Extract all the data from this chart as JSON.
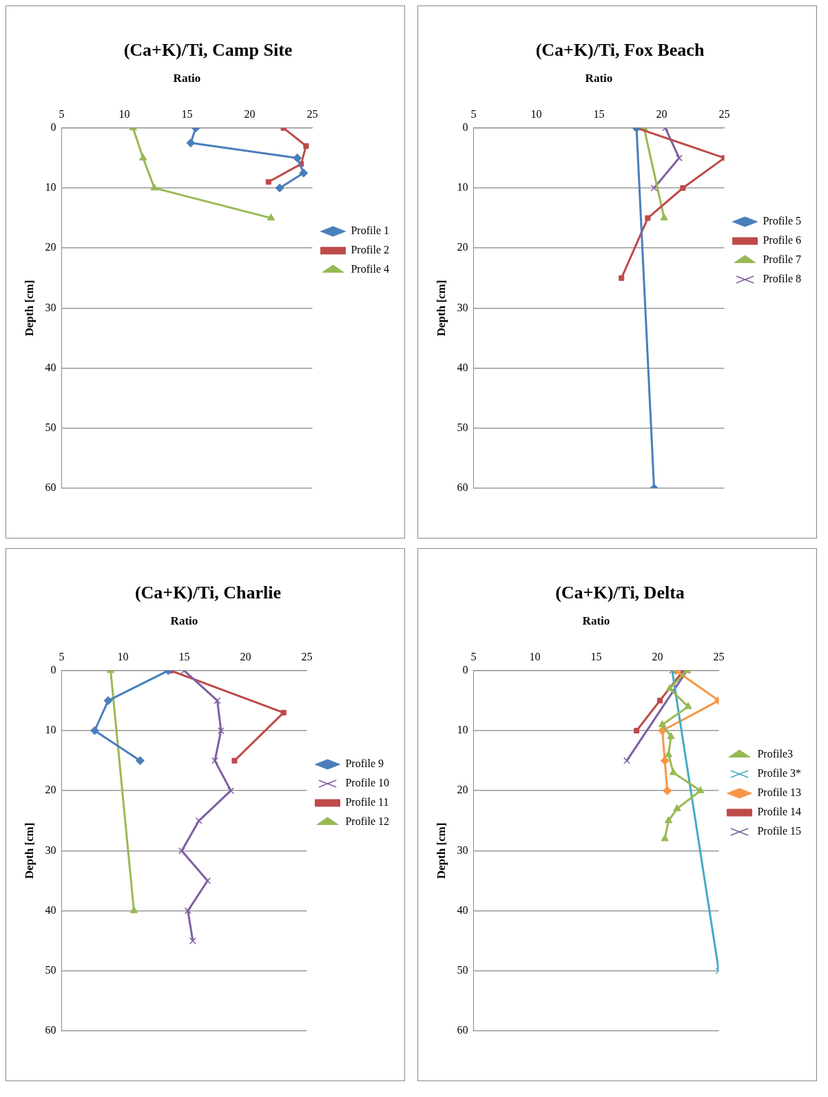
{
  "chart_data": [
    {
      "type": "line",
      "title": "(Ca+K)/Ti, Camp Site",
      "xlabel": "Ratio",
      "ylabel": "Depth [cm]",
      "xlim": [
        5,
        25
      ],
      "xticks": [
        5,
        10,
        15,
        20,
        25
      ],
      "ylim": [
        60,
        0
      ],
      "yticks": [
        0,
        10,
        20,
        30,
        40,
        50,
        60
      ],
      "grid": "y",
      "legend": "right",
      "series": [
        {
          "name": "Profile 1",
          "color": "#4a7ebb",
          "marker": "diamond",
          "x": [
            15.7,
            15.3,
            23.8,
            24.3,
            22.4
          ],
          "values": [
            0,
            2.5,
            5,
            7.5,
            10
          ]
        },
        {
          "name": "Profile 2",
          "color": "#be4b48",
          "marker": "square",
          "x": [
            22.7,
            24.5,
            24.1,
            21.5
          ],
          "values": [
            0,
            3,
            6,
            9
          ]
        },
        {
          "name": "Profile 4",
          "color": "#98b954",
          "marker": "triangle",
          "x": [
            10.7,
            11.5,
            12.4,
            21.7
          ],
          "values": [
            0,
            5,
            10,
            15
          ]
        }
      ]
    },
    {
      "type": "line",
      "title": "(Ca+K)/Ti, Fox Beach",
      "xlabel": "Ratio",
      "ylabel": "Depth [cm]",
      "xlim": [
        5,
        25
      ],
      "xticks": [
        5,
        10,
        15,
        20,
        25
      ],
      "ylim": [
        60,
        0
      ],
      "yticks": [
        0,
        10,
        20,
        30,
        40,
        50,
        60
      ],
      "grid": "y",
      "legend": "right",
      "series": [
        {
          "name": "Profile 5",
          "color": "#4a7ebb",
          "marker": "diamond",
          "x": [
            18.0,
            19.4
          ],
          "values": [
            0,
            60
          ]
        },
        {
          "name": "Profile 6",
          "color": "#be4b48",
          "marker": "square",
          "x": [
            18.0,
            25.0,
            21.7,
            18.9,
            16.8
          ],
          "values": [
            0,
            5,
            10,
            15,
            25
          ]
        },
        {
          "name": "Profile 7",
          "color": "#98b954",
          "marker": "triangle",
          "x": [
            18.6,
            20.2
          ],
          "values": [
            0,
            15
          ]
        },
        {
          "name": "Profile 8",
          "color": "#7d60a0",
          "marker": "cross",
          "x": [
            20.3,
            21.4,
            19.4
          ],
          "values": [
            0,
            5,
            10
          ]
        }
      ]
    },
    {
      "type": "line",
      "title": "(Ca+K)/Ti, Charlie",
      "xlabel": "Ratio",
      "ylabel": "Depth [cm]",
      "xlim": [
        5,
        25
      ],
      "xticks": [
        5,
        10,
        15,
        20,
        25
      ],
      "ylim": [
        60,
        0
      ],
      "yticks": [
        0,
        10,
        20,
        30,
        40,
        50,
        60
      ],
      "grid": "y",
      "legend": "right",
      "series": [
        {
          "name": "Profile 9",
          "color": "#4a7ebb",
          "marker": "diamond",
          "x": [
            13.7,
            8.8,
            7.7,
            11.4
          ],
          "values": [
            0,
            5,
            10,
            15
          ]
        },
        {
          "name": "Profile 10",
          "color": "#7d60a0",
          "marker": "cross",
          "x": [
            15.0,
            17.7,
            18.0,
            17.5,
            18.8,
            16.2,
            14.8,
            16.9,
            15.3,
            15.7
          ],
          "values": [
            0,
            5,
            10,
            15,
            20,
            25,
            30,
            35,
            40,
            45
          ]
        },
        {
          "name": "Profile 11",
          "color": "#be4b48",
          "marker": "square",
          "x": [
            13.9,
            23.1,
            19.1
          ],
          "values": [
            0,
            7,
            15
          ]
        },
        {
          "name": "Profile 12",
          "color": "#98b954",
          "marker": "triangle",
          "x": [
            9.0,
            10.9
          ],
          "values": [
            0,
            40
          ]
        }
      ]
    },
    {
      "type": "line",
      "title": "(Ca+K)/Ti, Delta",
      "xlabel": "Ratio",
      "ylabel": "Depth [cm]",
      "xlim": [
        5,
        25
      ],
      "xticks": [
        5,
        10,
        15,
        20,
        25
      ],
      "ylim": [
        60,
        0
      ],
      "yticks": [
        0,
        10,
        20,
        30,
        40,
        50,
        60
      ],
      "grid": "y",
      "legend": "right",
      "series": [
        {
          "name": "Profile3",
          "color": "#98b954",
          "marker": "triangle",
          "x": [
            22.4,
            21.0,
            22.5,
            20.4,
            21.1,
            20.9,
            21.3,
            23.5,
            21.6,
            20.9,
            20.6
          ],
          "values": [
            0,
            3,
            6,
            9,
            11,
            14,
            17,
            20,
            23,
            25,
            28
          ]
        },
        {
          "name": "Profile 3*",
          "color": "#46aac5",
          "marker": "cross",
          "x": [
            21.2,
            25.0
          ],
          "values": [
            0,
            50
          ]
        },
        {
          "name": "Profile 13",
          "color": "#f79646",
          "marker": "diamond",
          "x": [
            21.5,
            25.0,
            20.4,
            20.6,
            20.8
          ],
          "values": [
            0,
            5,
            10,
            15,
            20
          ]
        },
        {
          "name": "Profile 14",
          "color": "#be4b48",
          "marker": "square",
          "x": [
            22.1,
            20.2,
            18.3
          ],
          "values": [
            0,
            5,
            10
          ]
        },
        {
          "name": "Profile 15",
          "color": "#7d60a0",
          "marker": "cross",
          "x": [
            22.4,
            17.5
          ],
          "values": [
            0,
            15
          ]
        }
      ]
    }
  ]
}
